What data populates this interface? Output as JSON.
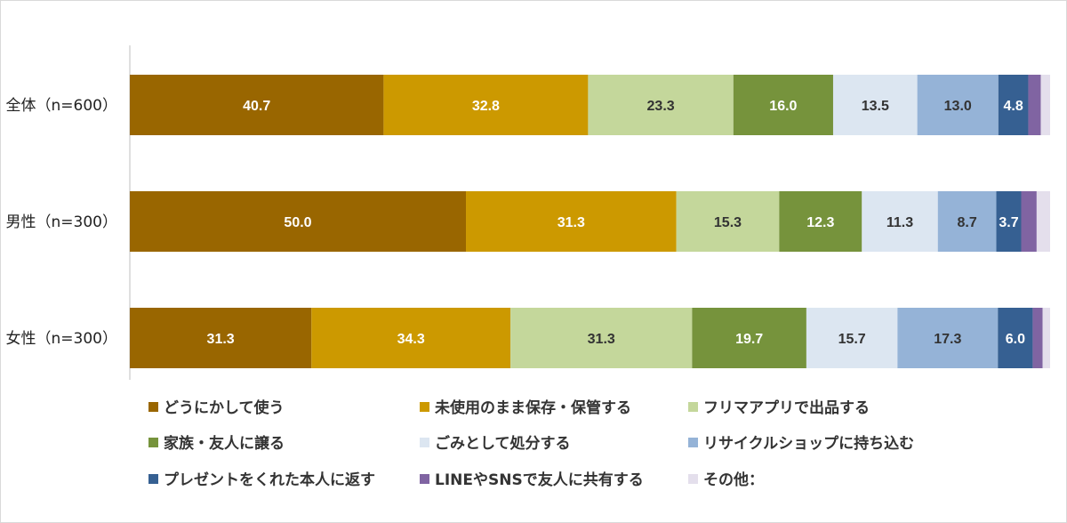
{
  "chart_data": {
    "type": "bar",
    "orientation": "horizontal",
    "stacked": true,
    "categories": [
      "全体（n=600）",
      "男性（n=300）",
      "女性（n=300）"
    ],
    "series": [
      {
        "name": "どうにかして使う",
        "color": "#996600",
        "label_color": "#ffffff",
        "values": [
          40.7,
          50.0,
          31.3
        ]
      },
      {
        "name": "未使用のまま保存・保管する",
        "color": "#CC9900",
        "label_color": "#ffffff",
        "values": [
          32.8,
          31.3,
          34.3
        ]
      },
      {
        "name": "フリマアプリで出品する",
        "color": "#C4D79B",
        "label_color": "#333333",
        "values": [
          23.3,
          15.3,
          31.3
        ]
      },
      {
        "name": "家族・友人に譲る",
        "color": "#76933C",
        "label_color": "#ffffff",
        "values": [
          16.0,
          12.3,
          19.7
        ]
      },
      {
        "name": "ごみとして処分する",
        "color": "#DCE6F1",
        "label_color": "#333333",
        "values": [
          13.5,
          11.3,
          15.7
        ]
      },
      {
        "name": "リサイクルショップに持ち込む",
        "color": "#95B3D7",
        "label_color": "#333333",
        "values": [
          13.0,
          8.7,
          17.3
        ]
      },
      {
        "name": "プレゼントをくれた本人に返す",
        "color": "#366092",
        "label_color": "#ffffff",
        "values": [
          4.8,
          3.7,
          6.0
        ]
      },
      {
        "name": "LINEやSNSで友人に共有する",
        "color": "#8064A2",
        "label_color": "#ffffff",
        "values": [
          2.0,
          2.3,
          1.7
        ]
      },
      {
        "name": "その他：",
        "color": "#E4DFEC",
        "label_color": "#333333",
        "values": [
          1.5,
          2.0,
          1.3
        ]
      }
    ],
    "data_labels_shown_for_series": 7,
    "value_format": "0.0",
    "grid": false,
    "legend_position": "bottom",
    "legend_columns": 3
  }
}
